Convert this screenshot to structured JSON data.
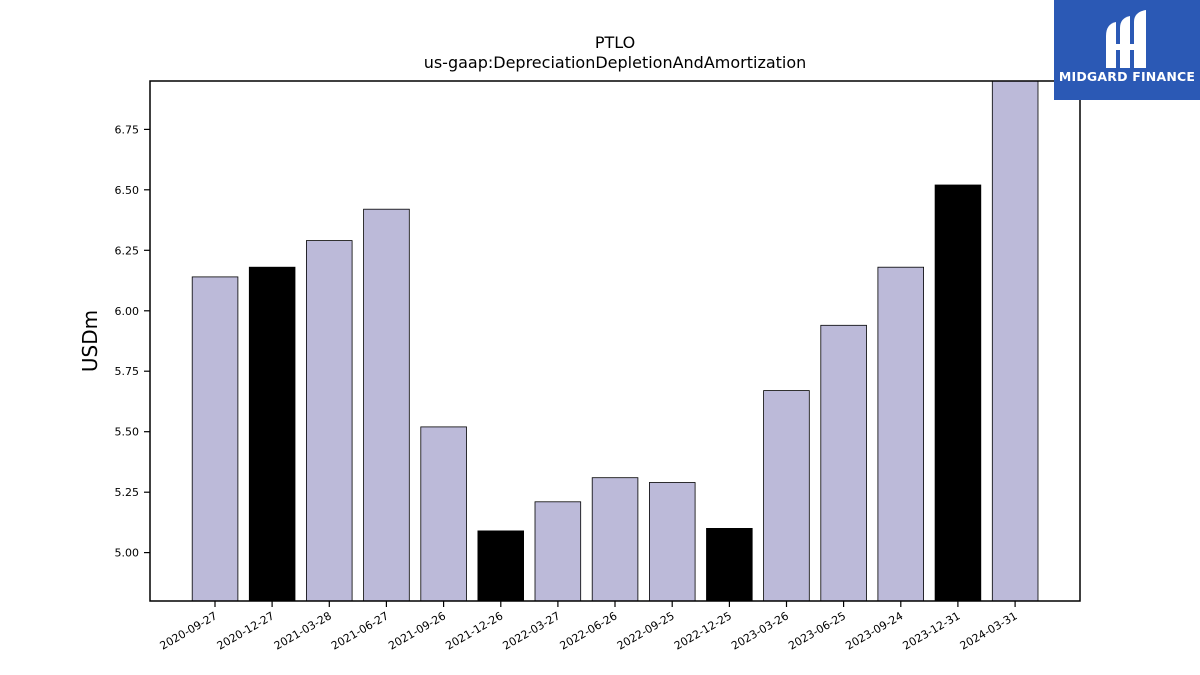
{
  "chart_data": {
    "type": "bar",
    "title": "PTLO",
    "subtitle": "us-gaap:DepreciationDepletionAndAmortization",
    "xlabel": "",
    "ylabel": "USDm",
    "ylim": [
      4.8,
      6.95
    ],
    "yticks": [
      "5.00",
      "5.25",
      "5.50",
      "5.75",
      "6.00",
      "6.25",
      "6.50",
      "6.75"
    ],
    "grid": false,
    "categories": [
      "2020-09-27",
      "2020-12-27",
      "2021-03-28",
      "2021-06-27",
      "2021-09-26",
      "2021-12-26",
      "2022-03-27",
      "2022-06-26",
      "2022-09-25",
      "2022-12-25",
      "2023-03-26",
      "2023-06-25",
      "2023-09-24",
      "2023-12-31",
      "2024-03-31"
    ],
    "values": [
      6.14,
      6.18,
      6.29,
      6.42,
      5.52,
      5.09,
      5.21,
      5.31,
      5.29,
      5.1,
      5.67,
      5.94,
      6.18,
      6.52,
      6.95
    ],
    "highlight": [
      false,
      true,
      false,
      false,
      false,
      true,
      false,
      false,
      false,
      true,
      false,
      false,
      false,
      true,
      false
    ],
    "colors": {
      "bar": "#bcbad9",
      "highlight": "#000000",
      "edge": "#000000"
    }
  },
  "logo": {
    "text": "MIDGARD FINANCE",
    "icon": "midgard-logo-icon",
    "background": "#2b59b5"
  }
}
